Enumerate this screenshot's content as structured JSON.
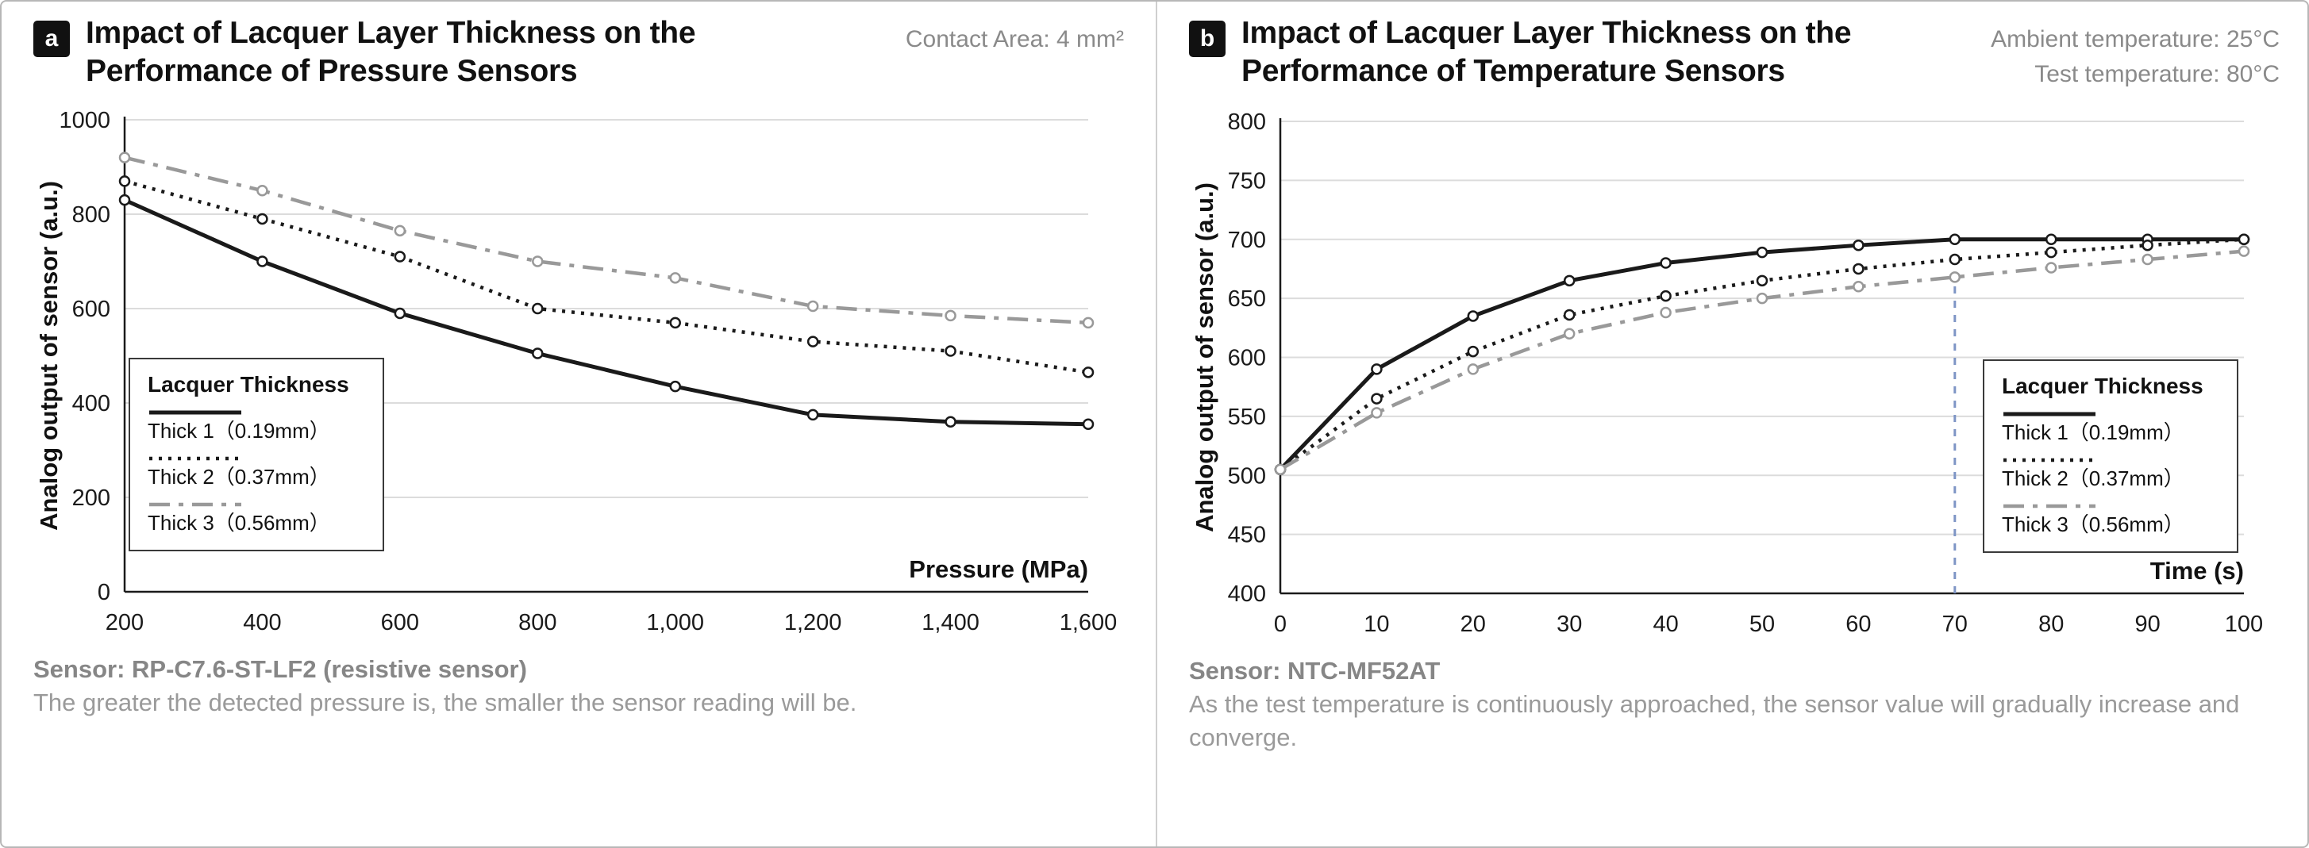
{
  "figure": {
    "panels": [
      {
        "badge": "a",
        "title": "Impact of Lacquer Layer Thickness on the Performance of Pressure Sensors",
        "conditions": [
          "Contact Area: 4 mm²"
        ],
        "footer_sensor": "Sensor: RP-C7.6-ST-LF2 (resistive sensor)",
        "footer_note": "The greater the detected pressure is, the smaller the sensor reading will be."
      },
      {
        "badge": "b",
        "title": "Impact of Lacquer Layer Thickness on the Performance of Temperature Sensors",
        "conditions": [
          "Ambient temperature: 25°C",
          "Test temperature: 80°C"
        ],
        "footer_sensor": "Sensor: NTC-MF52AT",
        "footer_note": "As the test temperature is continuously approached, the sensor value will gradually increase and converge."
      }
    ]
  },
  "chart_data": [
    {
      "type": "line",
      "title": "Impact of Lacquer Layer Thickness on the Performance of Pressure Sensors",
      "xlabel": "Pressure (MPa)",
      "ylabel": "Analog output of sensor (a.u.)",
      "legend_title": "Lacquer Thickness",
      "grid": "horizontal",
      "x": [
        200,
        400,
        600,
        800,
        1000,
        1200,
        1400,
        1600
      ],
      "x_tick_labels": [
        "200",
        "400",
        "600",
        "800",
        "1,000",
        "1,200",
        "1,400",
        "1,600"
      ],
      "ylim": [
        0,
        1000
      ],
      "y_ticks": [
        0,
        200,
        400,
        600,
        800,
        1000
      ],
      "series": [
        {
          "name": "Thick 1（0.19mm）",
          "style": "solid",
          "color": "#1a1a1a",
          "values": [
            830,
            700,
            590,
            505,
            435,
            375,
            360,
            355
          ]
        },
        {
          "name": "Thick 2（0.37mm）",
          "style": "dotted",
          "color": "#1a1a1a",
          "values": [
            870,
            790,
            710,
            600,
            570,
            530,
            510,
            465
          ]
        },
        {
          "name": "Thick 3（0.56mm）",
          "style": "dashdot",
          "color": "#999999",
          "values": [
            920,
            850,
            765,
            700,
            665,
            605,
            585,
            570
          ]
        }
      ]
    },
    {
      "type": "line",
      "title": "Impact of Lacquer Layer Thickness on the Performance of Temperature Sensors",
      "xlabel": "Time (s)",
      "ylabel": "Analog output of sensor (a.u.)",
      "legend_title": "Lacquer Thickness",
      "grid": "horizontal",
      "x": [
        0,
        10,
        20,
        30,
        40,
        50,
        60,
        70,
        80,
        90,
        100
      ],
      "x_tick_labels": [
        "0",
        "10",
        "20",
        "30",
        "40",
        "50",
        "60",
        "70",
        "80",
        "90",
        "100"
      ],
      "ylim": [
        400,
        800
      ],
      "y_ticks": [
        400,
        450,
        500,
        550,
        600,
        650,
        700,
        750,
        800
      ],
      "series": [
        {
          "name": "Thick 1（0.19mm）",
          "style": "solid",
          "color": "#1a1a1a",
          "values": [
            505,
            590,
            635,
            665,
            680,
            689,
            695,
            700,
            700,
            700,
            700
          ]
        },
        {
          "name": "Thick 2（0.37mm）",
          "style": "dotted",
          "color": "#1a1a1a",
          "values": [
            505,
            565,
            605,
            636,
            652,
            665,
            675,
            683,
            689,
            695,
            700
          ]
        },
        {
          "name": "Thick 3（0.56mm）",
          "style": "dashdot",
          "color": "#999999",
          "values": [
            505,
            553,
            590,
            620,
            638,
            650,
            660,
            668,
            676,
            683,
            690
          ]
        }
      ],
      "annotations": {
        "vline_x": 70,
        "vline_y_top": 686,
        "vline_color": "#7e95c5",
        "vline_style": "dashed"
      }
    }
  ]
}
